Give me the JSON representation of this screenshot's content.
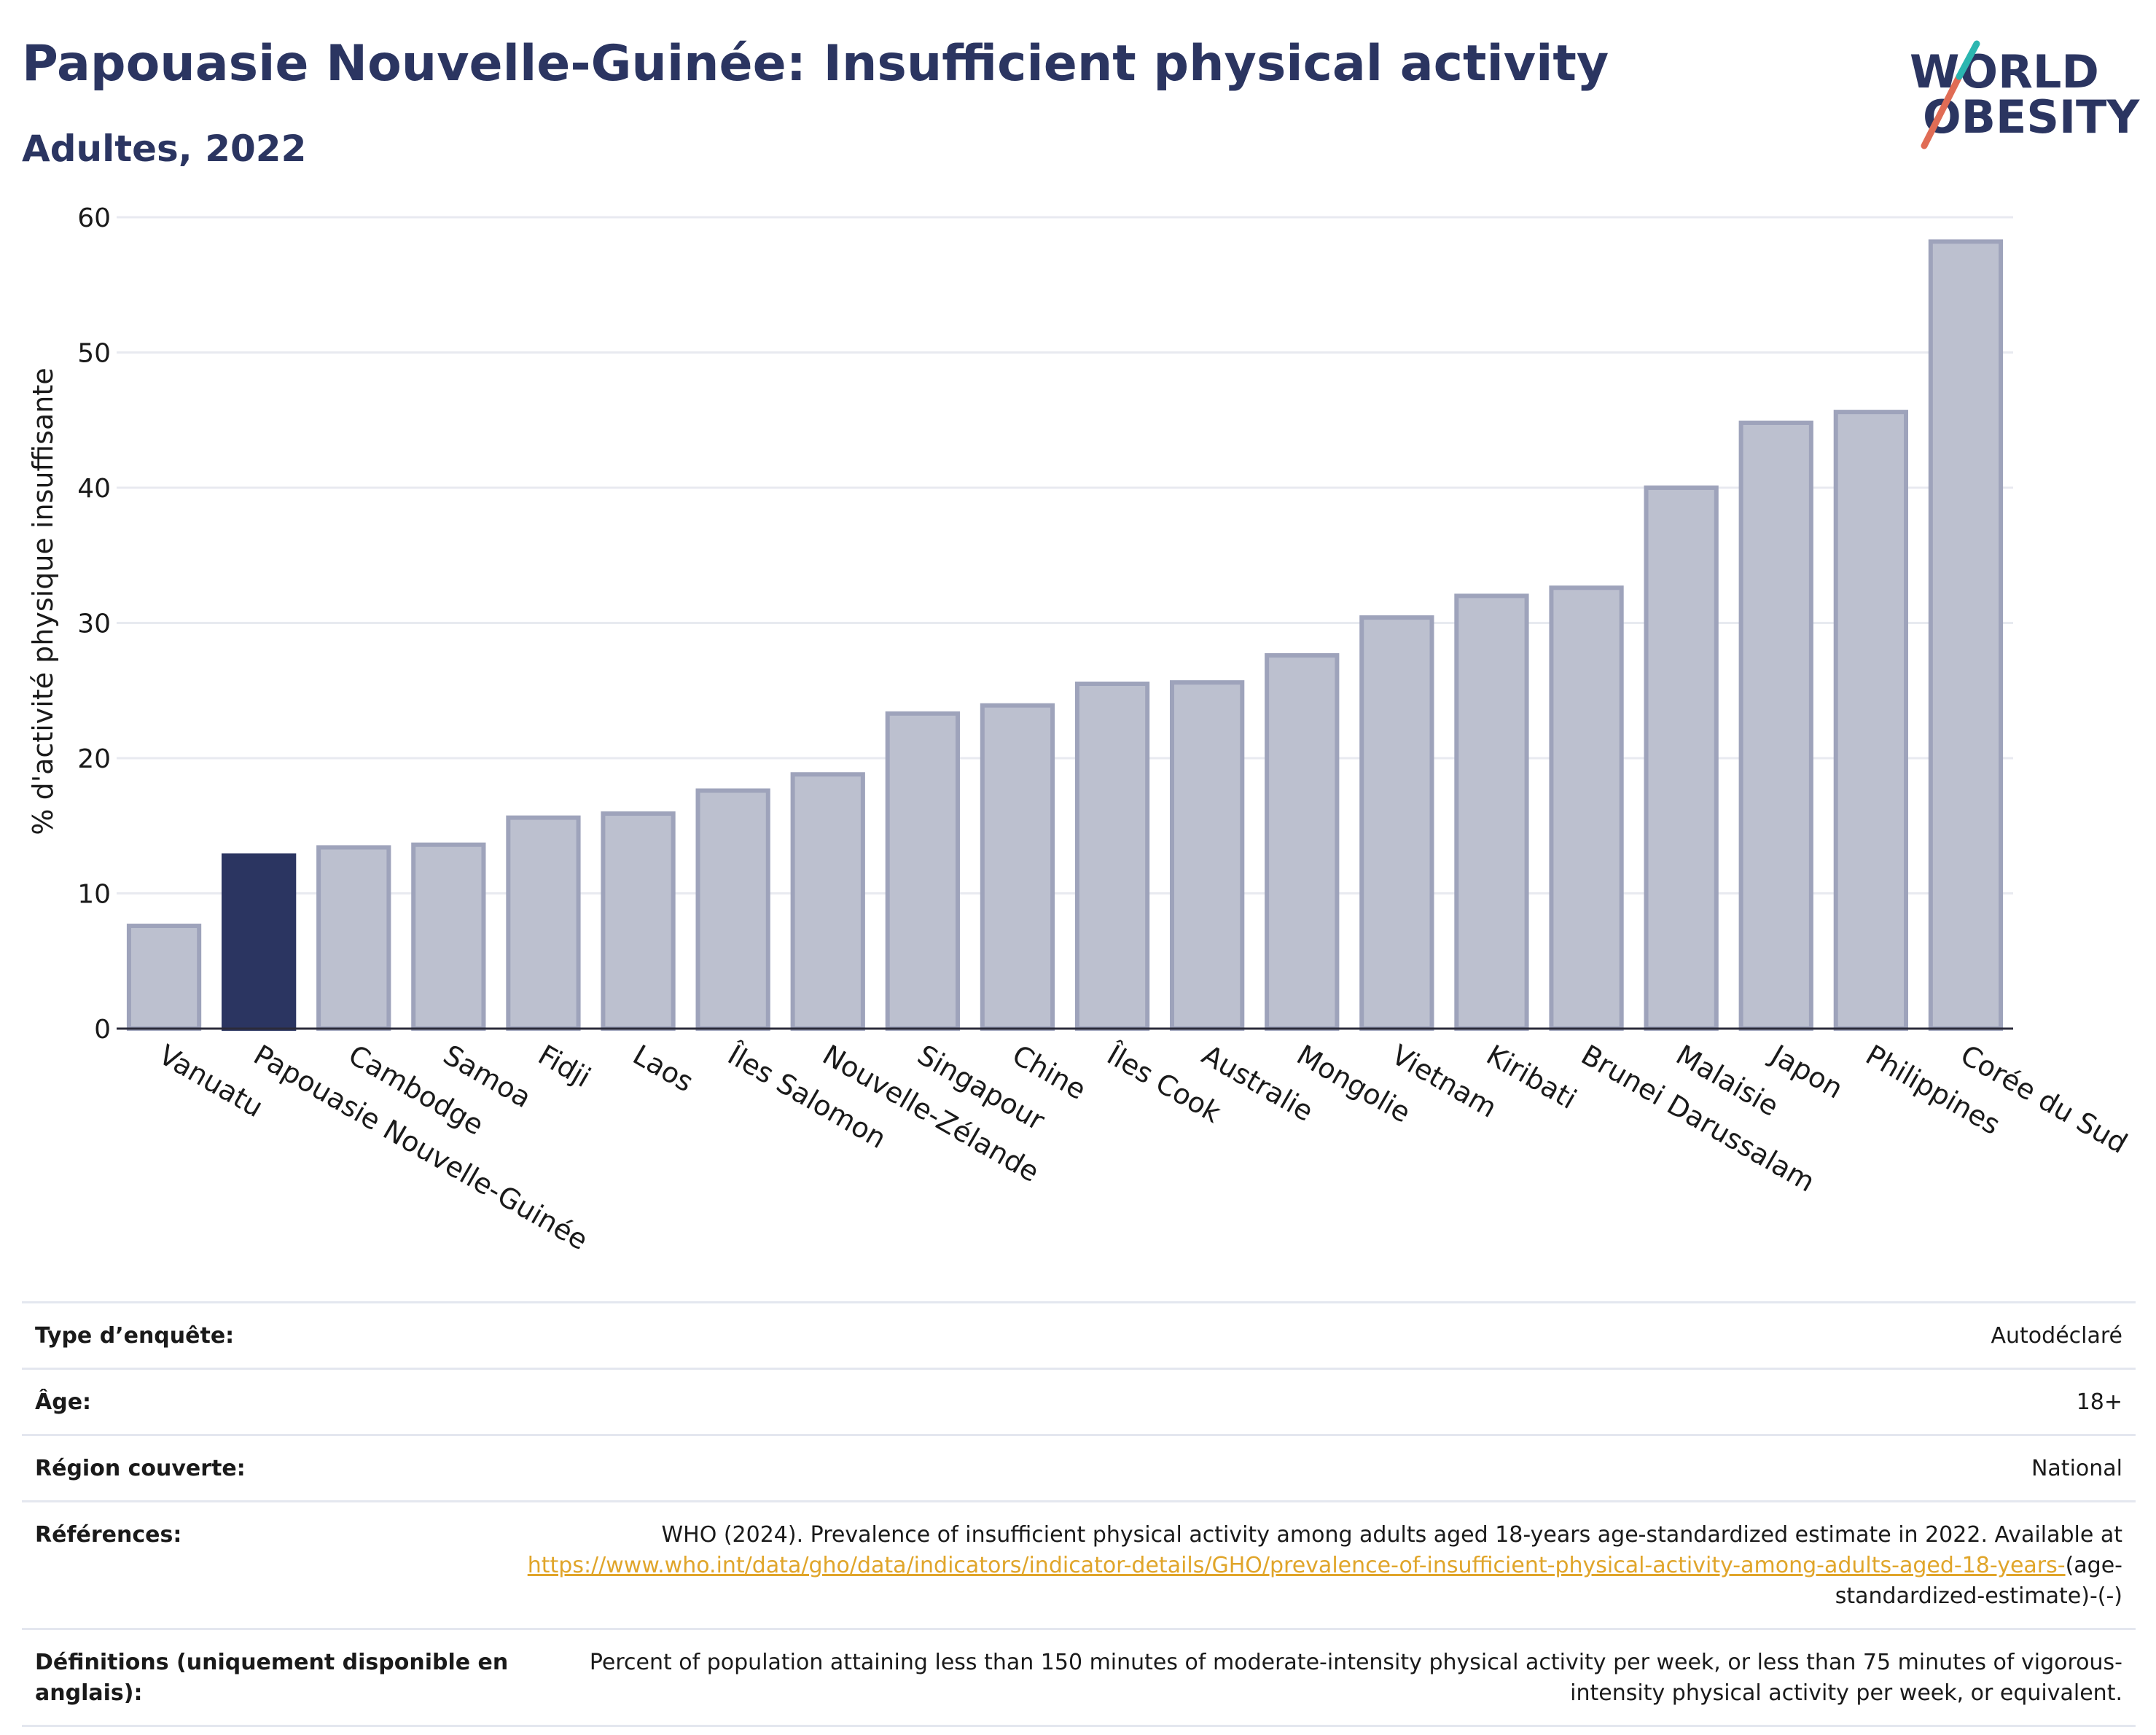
{
  "header": {
    "title": "Papouasie Nouvelle-Guinée: Insufficient physical activity",
    "subtitle": "Adultes, 2022"
  },
  "logo": {
    "line1": "WORLD",
    "line2": "OBESITY"
  },
  "chart_data": {
    "type": "bar",
    "ylabel": "% d'activité physique insuffisante",
    "ylim": [
      0,
      60
    ],
    "yticks": [
      0,
      10,
      20,
      30,
      40,
      50,
      60
    ],
    "grid": true,
    "highlight": "Papouasie Nouvelle-Guinée",
    "categories": [
      "Vanuatu",
      "Papouasie Nouvelle-Guinée",
      "Cambodge",
      "Samoa",
      "Fidji",
      "Laos",
      "Îles Salomon",
      "Nouvelle-Zélande",
      "Singapour",
      "Chine",
      "Îles Cook",
      "Australie",
      "Mongolie",
      "Vietnam",
      "Kiribati",
      "Brunei Darussalam",
      "Malaisie",
      "Japon",
      "Philippines",
      "Corée du Sud"
    ],
    "values": [
      7.6,
      12.8,
      13.4,
      13.6,
      15.6,
      15.9,
      17.6,
      18.8,
      23.3,
      23.9,
      25.5,
      25.6,
      27.6,
      30.4,
      32.0,
      32.6,
      40.0,
      44.8,
      45.6,
      58.2
    ],
    "colors": {
      "bar": "#bcc0cf",
      "bar_border": "#9ea3bb",
      "highlight": "#2b3561"
    }
  },
  "meta": [
    {
      "label": "Type d’enquête:",
      "value": "Autodéclaré"
    },
    {
      "label": "Âge:",
      "value": "18+"
    },
    {
      "label": "Région couverte:",
      "value": "National"
    },
    {
      "label": "Références:",
      "value": "WHO (2024). Prevalence of insufficient physical activity among adults aged 18-years age-standardized estimate in 2022. Available at",
      "link": "https://www.who.int/data/gho/data/indicators/indicator-details/GHO/prevalence-of-insufficient-physical-activity-among-adults-aged-18-years-",
      "value_after": "(age-standardized-estimate)-(-)"
    },
    {
      "label": "Définitions (uniquement disponible en anglais):",
      "value": "Percent of population attaining less than 150 minutes of moderate-intensity physical activity per week, or less than 75 minutes of vigorous-intensity physical activity per week, or equivalent."
    }
  ]
}
